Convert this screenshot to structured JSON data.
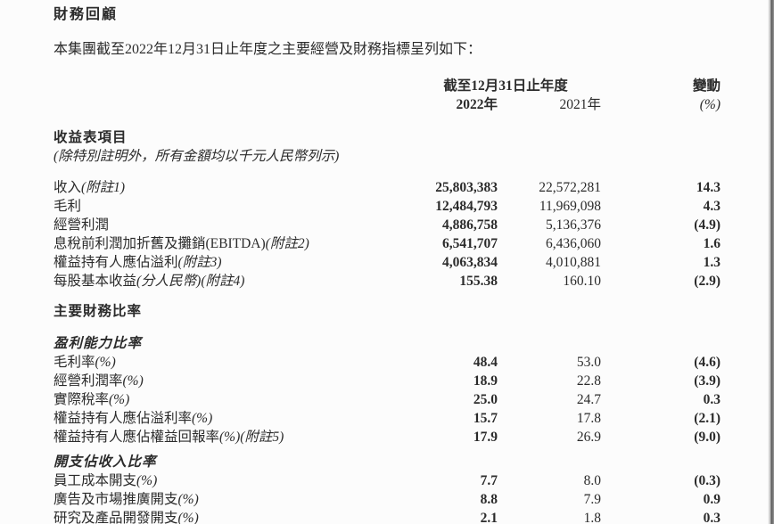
{
  "page": {
    "title": "財務回顧",
    "intro": "本集團截至2022年12月31日止年度之主要經營及財務指標呈列如下："
  },
  "table": {
    "header": {
      "period": "截至12月31日止年度",
      "change": "變動",
      "year_2022": "2022年",
      "year_2021": "2021年",
      "change_unit": "(%)"
    },
    "income_section": {
      "title": "收益表項目",
      "note": "(除特別註明外，所有金額均以千元人民幣列示)",
      "rows": [
        {
          "label": "收入",
          "suffix": "(附註1)",
          "y2022": "25,803,383",
          "y2021": "22,572,281",
          "change": "14.3"
        },
        {
          "label": "毛利",
          "suffix": "",
          "y2022": "12,484,793",
          "y2021": "11,969,098",
          "change": "4.3"
        },
        {
          "label": "經營利潤",
          "suffix": "",
          "y2022": "4,886,758",
          "y2021": "5,136,376",
          "change": "(4.9)"
        },
        {
          "label": "息稅前利潤加折舊及攤銷(EBITDA)",
          "suffix": "(附註2)",
          "y2022": "6,541,707",
          "y2021": "6,436,060",
          "change": "1.6"
        },
        {
          "label": "權益持有人應佔溢利",
          "suffix": "(附註3)",
          "y2022": "4,063,834",
          "y2021": "4,010,881",
          "change": "1.3"
        },
        {
          "label": "每股基本收益",
          "suffix": "(分人民幣)(附註4)",
          "y2022": "155.38",
          "y2021": "160.10",
          "change": "(2.9)"
        }
      ]
    },
    "ratios_title": "主要財務比率",
    "profitability_section": {
      "title": "盈利能力比率",
      "rows": [
        {
          "label": "毛利率",
          "suffix": "(%)",
          "y2022": "48.4",
          "y2021": "53.0",
          "change": "(4.6)"
        },
        {
          "label": "經營利潤率",
          "suffix": "(%)",
          "y2022": "18.9",
          "y2021": "22.8",
          "change": "(3.9)"
        },
        {
          "label": "實際稅率",
          "suffix": "(%)",
          "y2022": "25.0",
          "y2021": "24.7",
          "change": "0.3"
        },
        {
          "label": "權益持有人應佔溢利率",
          "suffix": "(%)",
          "y2022": "15.7",
          "y2021": "17.8",
          "change": "(2.1)"
        },
        {
          "label": "權益持有人應佔權益回報率",
          "suffix": "(%)(附註5)",
          "y2022": "17.9",
          "y2021": "26.9",
          "change": "(9.0)"
        }
      ]
    },
    "expense_section": {
      "title": "開支佔收入比率",
      "rows": [
        {
          "label": "員工成本開支",
          "suffix": "(%)",
          "y2022": "7.7",
          "y2021": "8.0",
          "change": "(0.3)"
        },
        {
          "label": "廣告及市場推廣開支",
          "suffix": "(%)",
          "y2022": "8.8",
          "y2021": "7.9",
          "change": "0.9"
        },
        {
          "label": "研究及產品開發開支",
          "suffix": "(%)",
          "y2022": "2.1",
          "y2021": "1.8",
          "change": "0.3"
        }
      ]
    }
  }
}
